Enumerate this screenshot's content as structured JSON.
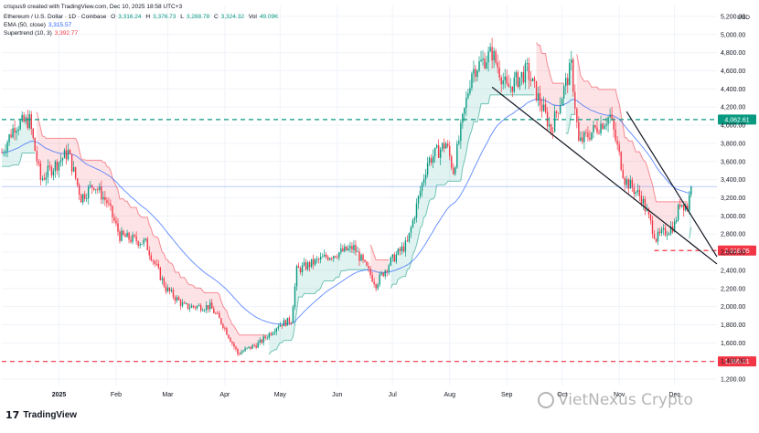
{
  "header": {
    "credit": "crispus9 created with TradingView.com, Dec 10, 2025 18:58 UTC+3",
    "symbol": "Ethereum / U.S. Dollar · 1D · Coinbase",
    "o_label": "O",
    "o_value": "3,316.24",
    "h_label": "H",
    "h_value": "3,376.73",
    "l_label": "L",
    "l_value": "3,288.78",
    "c_label": "C",
    "c_value": "3,324.32",
    "vol_label": "Vol",
    "vol_value": "49.09K",
    "ema_label": "EMA (50, close)",
    "ema_value": "3,315.57",
    "st_label": "Supertrend (10, 3)",
    "st_value": "3,392.77"
  },
  "branding": {
    "logo_mark": "17",
    "logo_text": "TradingView",
    "watermark": "VietNexus Crypto"
  },
  "chart_data": {
    "type": "candlestick",
    "currency": "USD",
    "yticks": [
      1200,
      1400,
      1600,
      1800,
      2000,
      2200,
      2400,
      2600,
      2800,
      3000,
      3200,
      3400,
      3600,
      3800,
      4000,
      4200,
      4400,
      4600,
      4800,
      5000,
      5200
    ],
    "ytick_labels": [
      "1,200.00",
      "1,400.00",
      "1,600.00",
      "1,800.00",
      "2,000.00",
      "2,200.00",
      "2,400.00",
      "2,600.00",
      "2,800.00",
      "3,000.00",
      "3,200.00",
      "3,400.00",
      "3,600.00",
      "3,800.00",
      "4,000.00",
      "4,200.00",
      "4,400.00",
      "4,600.00",
      "4,800.00",
      "5,000.00",
      "5,200.00"
    ],
    "ylim": [
      1130,
      5320
    ],
    "x_labels": [
      "2025",
      "Feb",
      "Mar",
      "Apr",
      "May",
      "Jun",
      "Jul",
      "Aug",
      "Sep",
      "Oct",
      "Nov",
      "Dec"
    ],
    "x_label_dates": [
      "2025-01-01",
      "2025-02-01",
      "2025-03-01",
      "2025-04-01",
      "2025-05-01",
      "2025-06-01",
      "2025-07-01",
      "2025-08-01",
      "2025-09-01",
      "2025-10-01",
      "2025-11-01",
      "2025-12-01"
    ],
    "date_range": [
      "2024-12-01",
      "2025-12-24"
    ],
    "horizontal_levels": [
      {
        "value": 4062.61,
        "label": "4,062.61",
        "color": "#089981",
        "style": "dashed"
      },
      {
        "value": 2618.05,
        "label": "2,618.05",
        "color": "#f23645",
        "style": "dashed",
        "from": "2025-11-20"
      },
      {
        "value": 1395.21,
        "label": "1,395.21",
        "color": "#f23645",
        "style": "dashed"
      }
    ],
    "current_price": 3324.32,
    "trendlines": [
      {
        "from": [
          "2025-08-24",
          4420
        ],
        "to": [
          "2025-12-24",
          2470
        ]
      },
      {
        "from": [
          "2025-11-05",
          4150
        ],
        "to": [
          "2025-12-24",
          2550
        ]
      }
    ],
    "anchors": [
      [
        "2024-12-01",
        3700
      ],
      [
        "2024-12-08",
        4000
      ],
      [
        "2024-12-16",
        4050
      ],
      [
        "2024-12-22",
        3400
      ],
      [
        "2025-01-06",
        3700
      ],
      [
        "2025-01-13",
        3200
      ],
      [
        "2025-01-20",
        3350
      ],
      [
        "2025-01-27",
        3150
      ],
      [
        "2025-02-03",
        2780
      ],
      [
        "2025-02-17",
        2700
      ],
      [
        "2025-02-28",
        2200
      ],
      [
        "2025-03-10",
        2000
      ],
      [
        "2025-03-24",
        2000
      ],
      [
        "2025-03-31",
        1800
      ],
      [
        "2025-04-08",
        1480
      ],
      [
        "2025-04-20",
        1600
      ],
      [
        "2025-04-30",
        1800
      ],
      [
        "2025-05-07",
        1850
      ],
      [
        "2025-05-10",
        2400
      ],
      [
        "2025-05-26",
        2550
      ],
      [
        "2025-06-10",
        2650
      ],
      [
        "2025-06-22",
        2250
      ],
      [
        "2025-06-30",
        2500
      ],
      [
        "2025-07-09",
        2700
      ],
      [
        "2025-07-20",
        3600
      ],
      [
        "2025-07-30",
        3800
      ],
      [
        "2025-08-03",
        3500
      ],
      [
        "2025-08-13",
        4600
      ],
      [
        "2025-08-24",
        4800
      ],
      [
        "2025-09-01",
        4400
      ],
      [
        "2025-09-12",
        4600
      ],
      [
        "2025-09-25",
        3950
      ],
      [
        "2025-10-06",
        4650
      ],
      [
        "2025-10-10",
        3800
      ],
      [
        "2025-10-27",
        4100
      ],
      [
        "2025-11-04",
        3400
      ],
      [
        "2025-11-13",
        3200
      ],
      [
        "2025-11-21",
        2750
      ],
      [
        "2025-12-01",
        2900
      ],
      [
        "2025-12-04",
        3150
      ],
      [
        "2025-12-08",
        3100
      ],
      [
        "2025-12-10",
        3324
      ]
    ]
  }
}
